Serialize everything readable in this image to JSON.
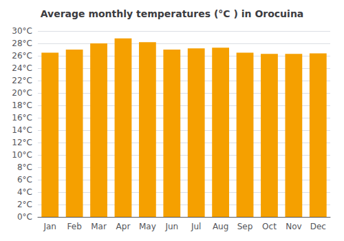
{
  "chart_data": {
    "type": "bar",
    "title": "Average monthly temperatures (°C ) in Orocuina",
    "categories": [
      "Jan",
      "Feb",
      "Mar",
      "Apr",
      "May",
      "Jun",
      "Jul",
      "Aug",
      "Sep",
      "Oct",
      "Nov",
      "Dec"
    ],
    "values": [
      26.5,
      27.0,
      28.0,
      28.8,
      28.2,
      27.0,
      27.2,
      27.3,
      26.5,
      26.3,
      26.3,
      26.4
    ],
    "color": "#F5A000",
    "ylim": [
      0,
      30
    ],
    "yticks": [
      {
        "value": 0,
        "label": "0°C"
      },
      {
        "value": 2,
        "label": "2°C"
      },
      {
        "value": 4,
        "label": "4°C"
      },
      {
        "value": 6,
        "label": "6°C"
      },
      {
        "value": 8,
        "label": "8°C"
      },
      {
        "value": 10,
        "label": "10°C"
      },
      {
        "value": 12,
        "label": "12°C"
      },
      {
        "value": 14,
        "label": "14°C"
      },
      {
        "value": 16,
        "label": "16°C"
      },
      {
        "value": 18,
        "label": "18°C"
      },
      {
        "value": 20,
        "label": "20°C"
      },
      {
        "value": 22,
        "label": "22°C"
      },
      {
        "value": 24,
        "label": "24°C"
      },
      {
        "value": 26,
        "label": "26°C"
      },
      {
        "value": 28,
        "label": "28°C"
      },
      {
        "value": 30,
        "label": "30°C"
      }
    ],
    "grid": true
  }
}
